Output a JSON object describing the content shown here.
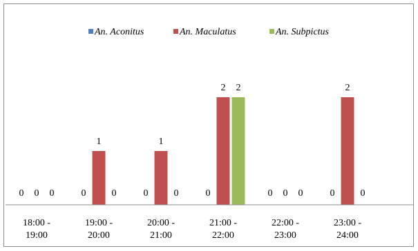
{
  "chart_data": {
    "type": "bar",
    "title": "",
    "xlabel": "",
    "ylabel": "",
    "ylim": [
      0,
      2
    ],
    "grid": false,
    "legend_placement": "top",
    "categories": [
      [
        "18:00 -",
        "19:00"
      ],
      [
        "19:00 -",
        "20:00"
      ],
      [
        "20:00 -",
        "21:00"
      ],
      [
        "21:00 -",
        "22:00"
      ],
      [
        "22:00 -",
        "23:00"
      ],
      [
        "23:00 -",
        "24:00"
      ]
    ],
    "series": [
      {
        "name": "An. Aconitus",
        "color": "#4f81bd",
        "values": [
          0,
          0,
          0,
          0,
          0,
          0
        ]
      },
      {
        "name": "An. Maculatus",
        "color": "#c0504d",
        "values": [
          0,
          1,
          1,
          2,
          0,
          2
        ]
      },
      {
        "name": "An. Subpictus",
        "color": "#9bbb59",
        "values": [
          0,
          0,
          0,
          2,
          0,
          0
        ]
      }
    ]
  }
}
